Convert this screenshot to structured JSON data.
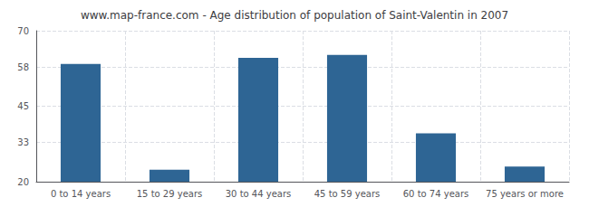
{
  "chart_data": {
    "type": "bar",
    "title": "www.map-france.com - Age distribution of population of Saint-Valentin in 2007",
    "categories": [
      "0 to 14 years",
      "15 to 29 years",
      "30 to 44 years",
      "45 to 59 years",
      "60 to 74 years",
      "75 years or more"
    ],
    "values": [
      59,
      24,
      61,
      62,
      36,
      25
    ],
    "color": "#2e6594",
    "ylim": [
      20,
      70
    ],
    "yticks": [
      20,
      33,
      45,
      58,
      70
    ],
    "grid": true
  }
}
